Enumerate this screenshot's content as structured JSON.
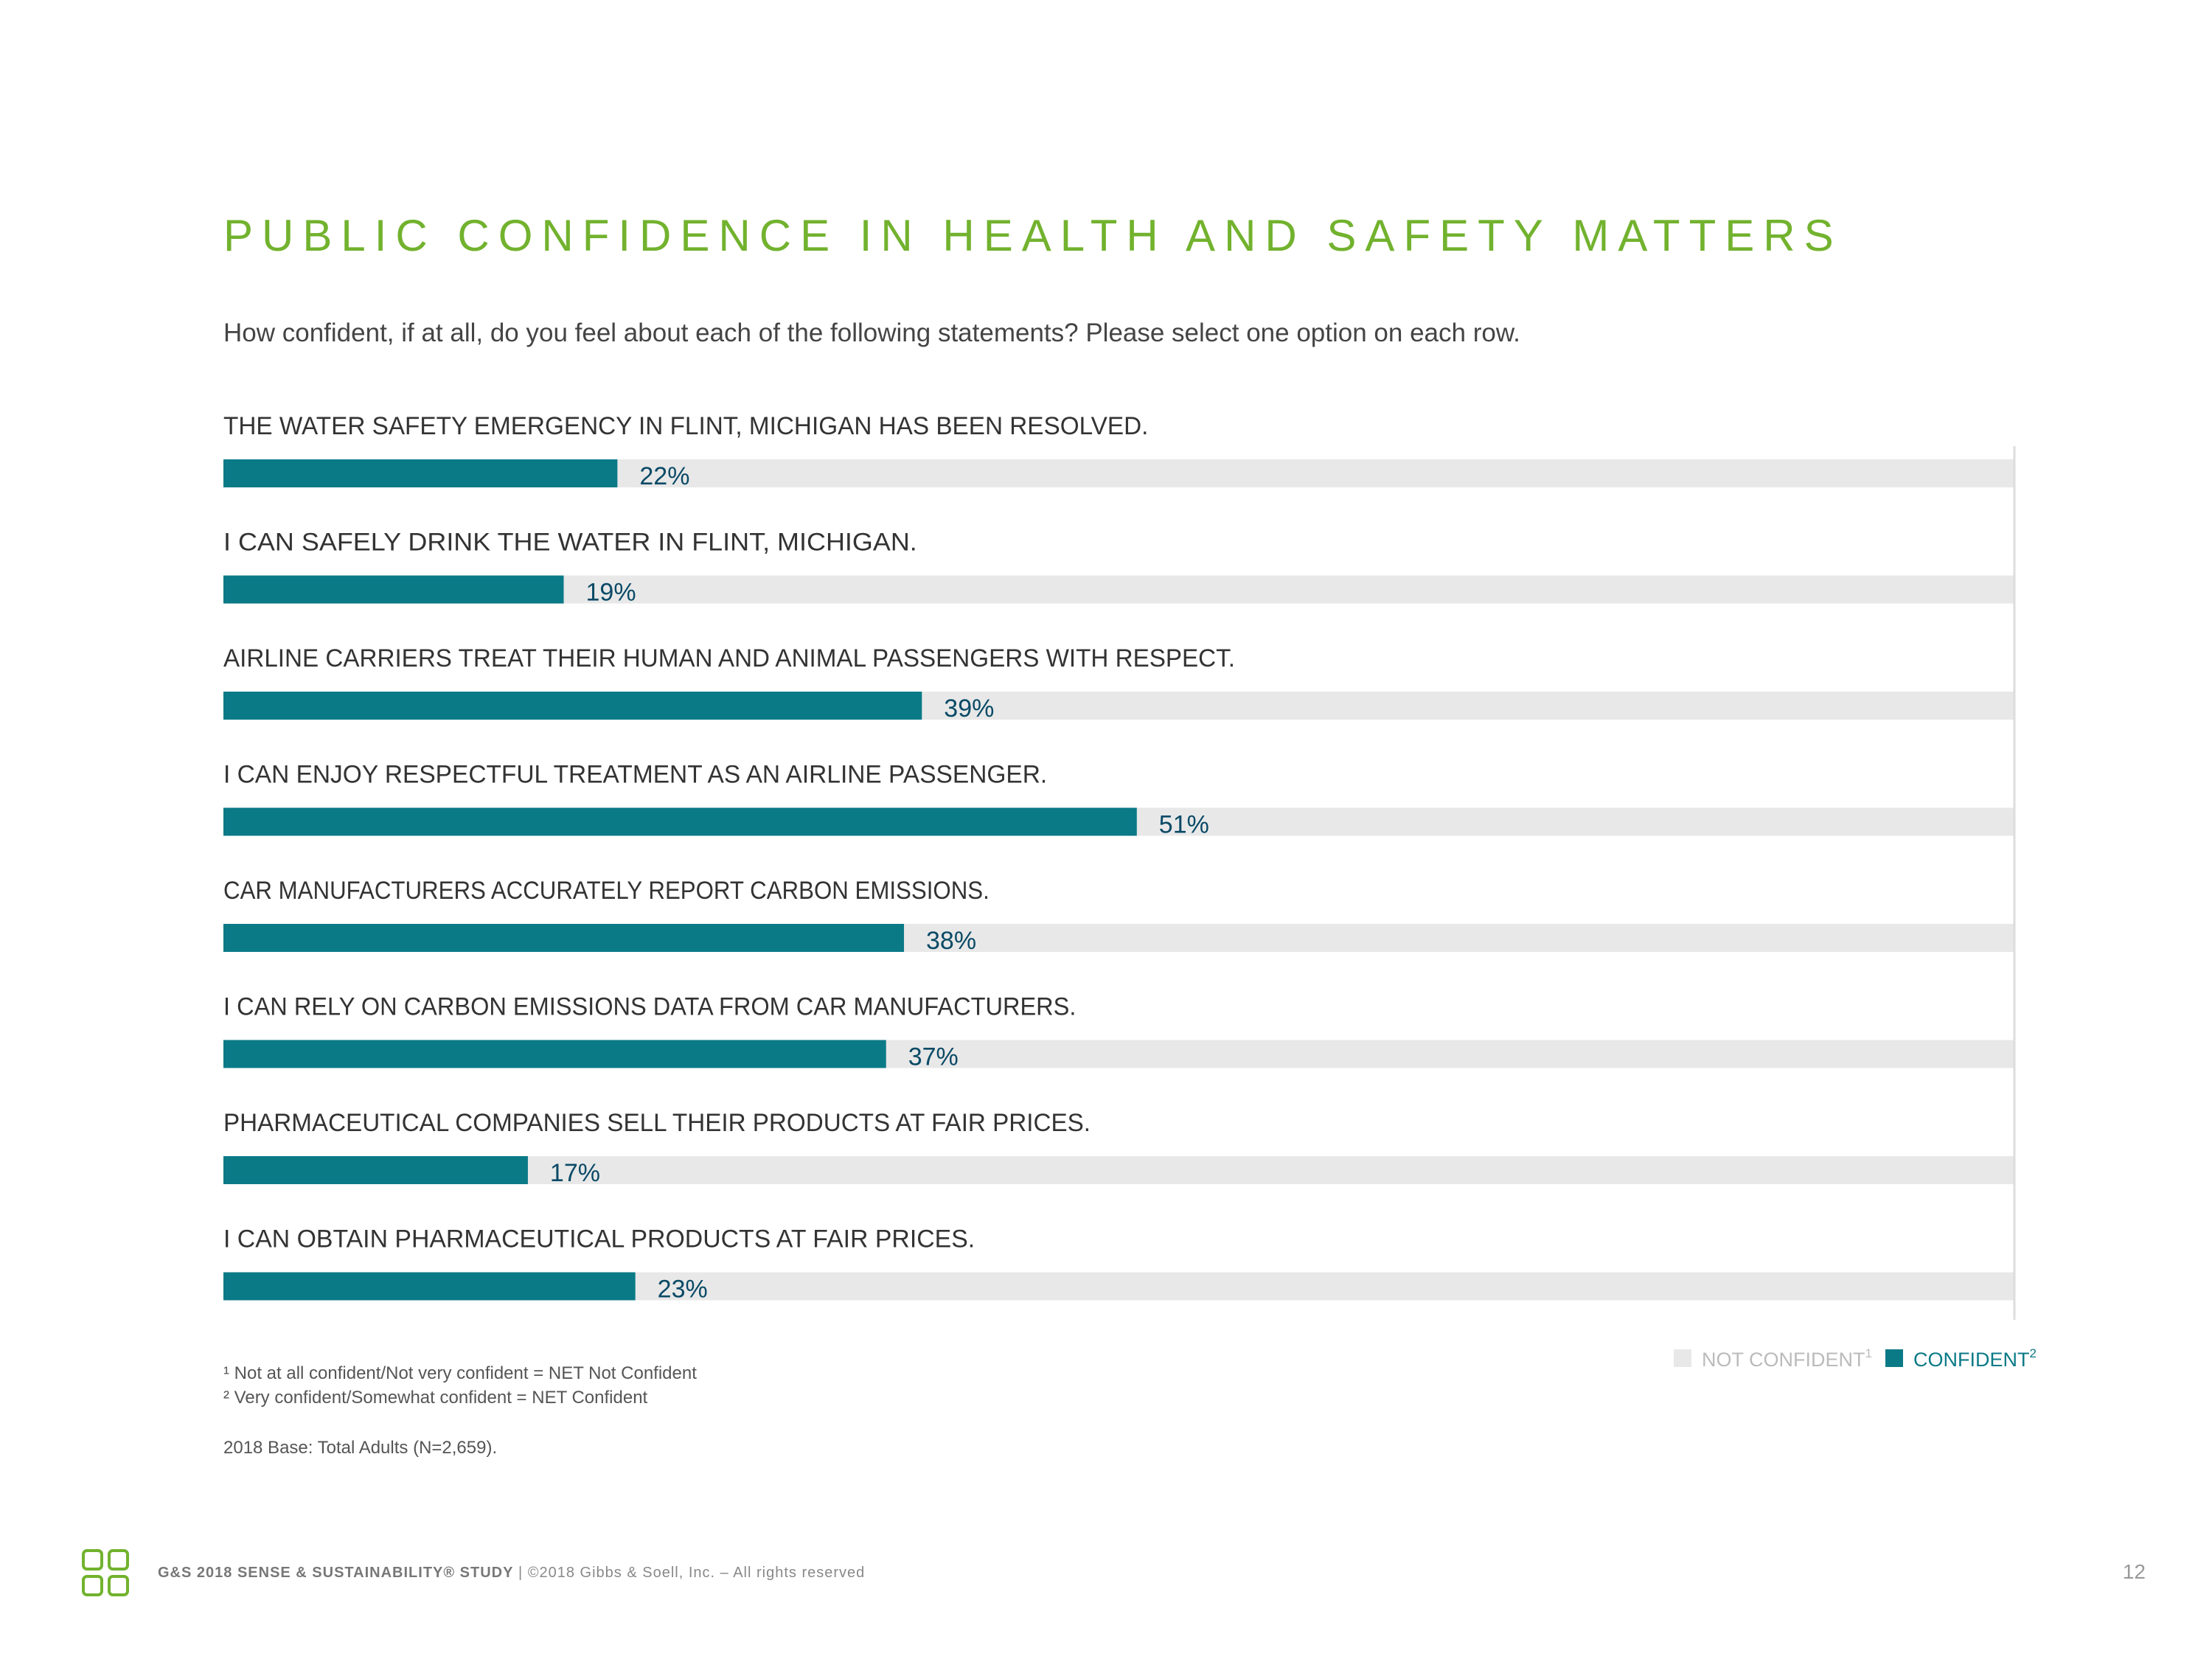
{
  "title": "PUBLIC CONFIDENCE IN HEALTH AND SAFETY MATTERS",
  "question": "How confident, if at all, do you feel about each of the following statements? Please select one option on each row.",
  "colors": {
    "confident": "#0b7a87",
    "not_confident": "#e8e8e8",
    "title": "#72b22e"
  },
  "chart_data": {
    "type": "bar",
    "orientation": "horizontal",
    "stacked": true,
    "xlim": [
      0,
      100
    ],
    "categories": [
      "THE WATER SAFETY EMERGENCY IN FLINT, MICHIGAN HAS BEEN RESOLVED.",
      "I CAN SAFELY DRINK THE WATER IN FLINT, MICHIGAN.",
      "AIRLINE CARRIERS TREAT THEIR HUMAN AND ANIMAL PASSENGERS WITH RESPECT.",
      "I CAN ENJOY RESPECTFUL TREATMENT AS AN AIRLINE PASSENGER.",
      "CAR MANUFACTURERS ACCURATELY REPORT CARBON EMISSIONS.",
      "I CAN RELY ON CARBON EMISSIONS DATA FROM CAR MANUFACTURERS.",
      "PHARMACEUTICAL COMPANIES SELL THEIR PRODUCTS AT FAIR PRICES.",
      "I CAN OBTAIN PHARMACEUTICAL PRODUCTS AT FAIR PRICES."
    ],
    "series": [
      {
        "name": "CONFIDENT",
        "values": [
          22,
          19,
          39,
          51,
          38,
          37,
          17,
          23
        ]
      },
      {
        "name": "NOT CONFIDENT",
        "values": [
          78,
          81,
          61,
          49,
          62,
          63,
          83,
          77
        ]
      }
    ],
    "value_labels": [
      "22%",
      "19%",
      "39%",
      "51%",
      "38%",
      "37%",
      "17%",
      "23%"
    ],
    "legend": {
      "position": "bottom-right",
      "items": [
        {
          "label": "NOT CONFIDENT",
          "sup": "1"
        },
        {
          "label": "CONFIDENT",
          "sup": "2"
        }
      ]
    }
  },
  "footnotes": {
    "note1": "¹ Not at all confident/Not very confident = NET Not Confident",
    "note2": "² Very confident/Somewhat confident = NET Confident",
    "base": "2018 Base: Total Adults (N=2,659)."
  },
  "footer": {
    "study": "G&S 2018 SENSE & SUSTAINABILITY® STUDY",
    "copyright": " | ©2018 Gibbs & Soell, Inc. – All rights reserved",
    "page_number": "12"
  }
}
